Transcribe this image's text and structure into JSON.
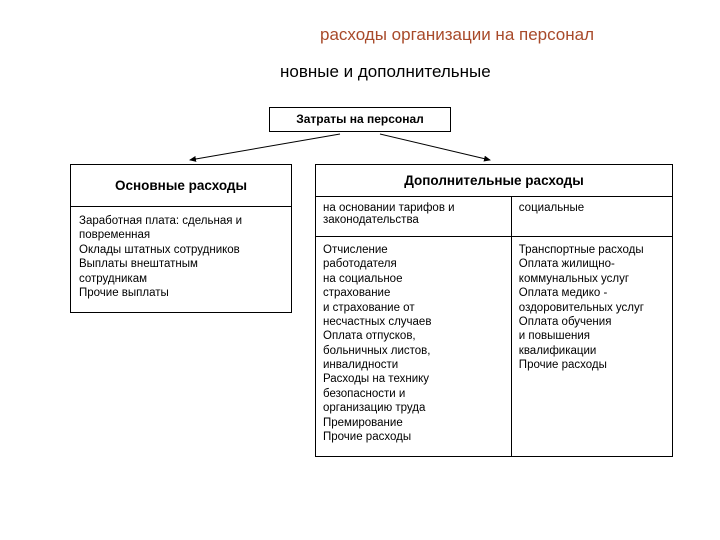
{
  "colors": {
    "title_accent": "#a84a2a",
    "text": "#000000",
    "border": "#000000",
    "bg": "#ffffff"
  },
  "fonts": {
    "title_size_pt": 17,
    "head_size_pt": 13.5,
    "body_size_pt": 11.5
  },
  "title_line1": "расходы организации на персонал",
  "title_line2": "новные и дополнительные",
  "diagram": {
    "type": "tree",
    "root": {
      "label": "Затраты на персонал"
    },
    "left_branch": {
      "header": "Основные расходы",
      "body_lines": [
        "Заработная плата: сдельная и",
        "повременная",
        "Оклады штатных сотрудников",
        "Выплаты внештатным",
        "сотрудникам",
        "Прочие выплаты"
      ]
    },
    "right_branch": {
      "header": "Дополнительные расходы",
      "sub_left": "на основании тарифов и законодательства",
      "sub_right": "социальные",
      "body_left_lines": [
        "Отчисление",
        "работодателя",
        "на социальное",
        "страхование",
        "и страхование от",
        "несчастных случаев",
        "Оплата отпусков,",
        "больничных листов,",
        "инвалидности",
        "Расходы на технику",
        "безопасности и",
        "организацию труда",
        "Премирование",
        "Прочие расходы"
      ],
      "body_right_lines": [
        "Транспортные расходы",
        "Оплата жилищно-",
        "коммунальных услуг",
        "Оплата медико -",
        "оздоровительных услуг",
        "Оплата обучения",
        "и повышения",
        "квалификации",
        "Прочие расходы"
      ]
    }
  }
}
